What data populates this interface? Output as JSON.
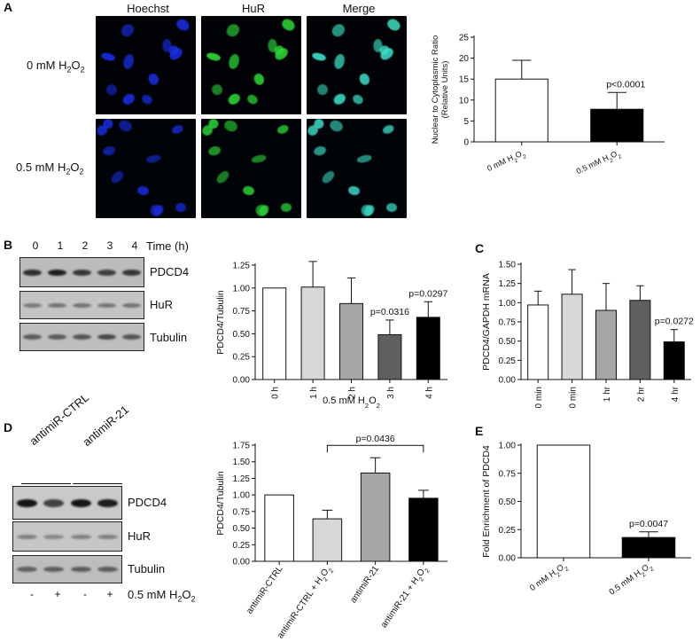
{
  "panels": {
    "A": {
      "letter": "A",
      "columns": [
        "Hoechst",
        "HuR",
        "Merge"
      ],
      "rows": [
        {
          "label": "0 mM H",
          "sub": "2",
          "label_tail": "O",
          "sub2": "2"
        },
        {
          "label": "0.5 mM H",
          "sub": "2",
          "label_tail": "O",
          "sub2": "2"
        }
      ]
    },
    "B": {
      "letter": "B",
      "lanes": [
        "0",
        "1",
        "2",
        "3",
        "4"
      ],
      "lanes_header": "Time (h)",
      "blots": [
        "PDCD4",
        "HuR",
        "Tubulin"
      ]
    },
    "C": {
      "letter": "C"
    },
    "D": {
      "letter": "D",
      "groups": [
        "antimiR-CTRL",
        "antimiR-21"
      ],
      "blots": [
        "PDCD4",
        "HuR",
        "Tubulin"
      ],
      "treatment_signs": [
        "-",
        "+",
        "-",
        "+"
      ],
      "treatment_label": "0.5 mM H",
      "treatment_sub": "2",
      "treatment_tail": "O",
      "treatment_sub2": "2"
    },
    "E": {
      "letter": "E"
    }
  },
  "colors": {
    "hoechst": "#1a2ee6",
    "hur": "#2fd93a",
    "merge": "#3fe0c8",
    "bar_white": "#ffffff",
    "bar_light": "#d7d7d7",
    "bar_mid": "#a6a6a6",
    "bar_dark": "#5f5f5f",
    "bar_black": "#000000"
  },
  "chart_data": [
    {
      "id": "A",
      "type": "bar",
      "categories": [
        "0 mM H2O2",
        "0.5 mM H2O2"
      ],
      "values": [
        15.0,
        7.8
      ],
      "errors": [
        4.5,
        4.0
      ],
      "ylabel": "Nuclear to Cytoplasmic Ratio (Relative Units)",
      "ylabel_lines": [
        "Nuclear to Cytoplasmic Ratio",
        "(Relative Units)"
      ],
      "ylim": [
        0,
        25
      ],
      "yticks": [
        "0",
        "5",
        "10",
        "15",
        "20",
        "25"
      ],
      "annotations": [
        {
          "bar": 1,
          "text": "p<0.0001"
        }
      ],
      "fills": [
        "bar_white",
        "bar_black"
      ],
      "xlabel": ""
    },
    {
      "id": "B",
      "type": "bar",
      "categories": [
        "0 h",
        "1 h",
        "2 h",
        "3 h",
        "4 h"
      ],
      "values": [
        1.0,
        1.01,
        0.83,
        0.49,
        0.68
      ],
      "errors": [
        0.0,
        0.28,
        0.28,
        0.16,
        0.17
      ],
      "ylabel": "PDCD4/Tubulin",
      "xlabel": "0.5 mM H2O2",
      "ylim": [
        0,
        1.25
      ],
      "yticks": [
        "0.00",
        "0.25",
        "0.50",
        "0.75",
        "1.00",
        "1.25"
      ],
      "annotations": [
        {
          "bar": 3,
          "text": "p=0.0316"
        },
        {
          "bar": 4,
          "text": "p=0.0297"
        }
      ],
      "fills": [
        "bar_white",
        "bar_light",
        "bar_mid",
        "bar_dark",
        "bar_black"
      ]
    },
    {
      "id": "C",
      "type": "bar",
      "categories": [
        "0 min",
        "30 min",
        "1 hr",
        "2 hr",
        "4 hr"
      ],
      "values": [
        0.97,
        1.11,
        0.9,
        1.03,
        0.49
      ],
      "errors": [
        0.18,
        0.32,
        0.35,
        0.19,
        0.16
      ],
      "ylabel": "PDCD4/GAPDH mRNA",
      "xlabel": "0.5 mM H2O2",
      "ylim": [
        0,
        1.5
      ],
      "yticks": [
        "0.00",
        "0.25",
        "0.50",
        "0.75",
        "1.00",
        "1.25",
        "1.50"
      ],
      "annotations": [
        {
          "bar": 4,
          "text": "p=0.0272"
        }
      ],
      "fills": [
        "bar_white",
        "bar_light",
        "bar_mid",
        "bar_dark",
        "bar_black"
      ]
    },
    {
      "id": "D",
      "type": "bar",
      "categories": [
        "antimiR-CTRL",
        "antimiR-CTRL + H2O2",
        "antimiR-21",
        "antimiR-21 + H2O2"
      ],
      "values": [
        1.0,
        0.64,
        1.33,
        0.95
      ],
      "errors": [
        0.0,
        0.13,
        0.23,
        0.12
      ],
      "ylabel": "PDCD4/Tubulin",
      "xlabel": "",
      "ylim": [
        0,
        1.75
      ],
      "yticks": [
        "0.00",
        "0.25",
        "0.50",
        "0.75",
        "1.00",
        "1.25",
        "1.50",
        "1.75"
      ],
      "bracket": {
        "from": 1,
        "to": 3,
        "text": "p=0.0436"
      },
      "fills": [
        "bar_white",
        "bar_light",
        "bar_mid",
        "bar_black"
      ]
    },
    {
      "id": "E",
      "type": "bar",
      "categories": [
        "0 mM H2O2",
        "0.5 mM H2O2"
      ],
      "values": [
        1.0,
        0.18
      ],
      "errors": [
        0.0,
        0.05
      ],
      "ylabel": "Fold Enrichment of PDCD4",
      "xlabel": "",
      "ylim": [
        0,
        1.0
      ],
      "yticks": [
        "0.00",
        "0.25",
        "0.50",
        "0.75",
        "1.00"
      ],
      "annotations": [
        {
          "bar": 1,
          "text": "p=0.0047"
        }
      ],
      "fills": [
        "bar_white",
        "bar_black"
      ]
    }
  ]
}
